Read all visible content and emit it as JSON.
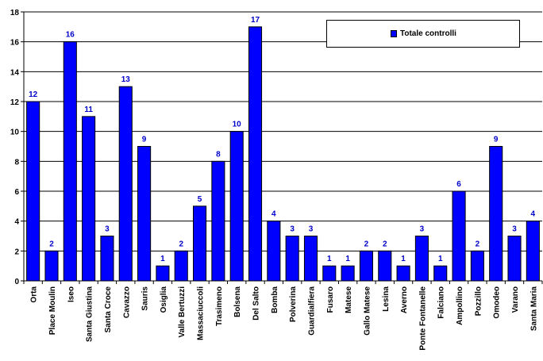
{
  "chart_data": {
    "type": "bar",
    "title": "",
    "xlabel": "",
    "ylabel": "",
    "ylim": [
      0,
      18
    ],
    "yticks": [
      0,
      2,
      4,
      6,
      8,
      10,
      12,
      14,
      16,
      18
    ],
    "grid": true,
    "legend_position": "top-right",
    "bar_color": "#0000ff",
    "label_color": "#0000cc",
    "categories": [
      "Orta",
      "Place Moulin",
      "Iseo",
      "Santa Giustina",
      "Santa Croce",
      "Cavazzo",
      "Sauris",
      "Osiglia",
      "Valle Bertuzzi",
      "Massaciuccoli",
      "Trasimeno",
      "Bolsena",
      "Del Salto",
      "Bomba",
      "Polverina",
      "Guardialfiera",
      "Fusaro",
      "Matese",
      "Gallo Matese",
      "Lesina",
      "Averno",
      "Ponte Fontanelle",
      "Falciano",
      "Ampollino",
      "Pozzillo",
      "Omodeo",
      "Varano",
      "Santa Maria"
    ],
    "series": [
      {
        "name": "Totale controlli",
        "values": [
          12,
          2,
          16,
          11,
          3,
          13,
          9,
          1,
          2,
          5,
          8,
          10,
          17,
          4,
          3,
          3,
          1,
          1,
          2,
          2,
          1,
          3,
          1,
          6,
          2,
          9,
          3,
          4
        ]
      }
    ]
  }
}
